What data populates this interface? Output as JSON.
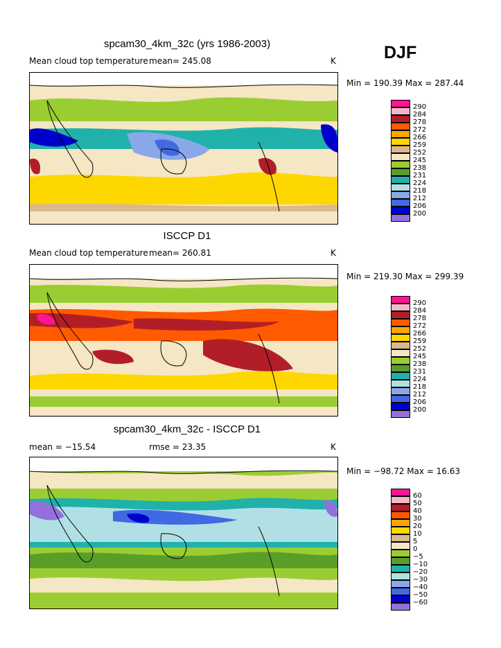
{
  "season": "DJF",
  "panels": [
    {
      "title": "spcam30_4km_32c (yrs 1986-2003)",
      "left_label": "Mean cloud top temperature",
      "mid_label": "mean=  245.08",
      "units": "K",
      "minmax": "Min = 190.39  Max = 287.44",
      "legend": {
        "labels": [
          "290",
          "284",
          "278",
          "272",
          "266",
          "259",
          "252",
          "245",
          "238",
          "231",
          "224",
          "218",
          "212",
          "206",
          "200"
        ],
        "colors": [
          "#ff1493",
          "#f7b6c6",
          "#b21e28",
          "#ff5a00",
          "#ffa500",
          "#ffd700",
          "#d9b98a",
          "#f5e6c4",
          "#9acd32",
          "#5a9e2a",
          "#20b2aa",
          "#b0e0e6",
          "#8aa8e8",
          "#4169e1",
          "#0000cd",
          "#9370db"
        ]
      }
    },
    {
      "title": "ISCCP D1",
      "left_label": "Mean cloud top temperature",
      "mid_label": "mean=  260.81",
      "units": "K",
      "minmax": "Min = 219.30  Max = 299.39",
      "legend": {
        "labels": [
          "290",
          "284",
          "278",
          "272",
          "266",
          "259",
          "252",
          "245",
          "238",
          "231",
          "224",
          "218",
          "212",
          "206",
          "200"
        ],
        "colors": [
          "#ff1493",
          "#f7b6c6",
          "#b21e28",
          "#ff5a00",
          "#ffa500",
          "#ffd700",
          "#d9b98a",
          "#f5e6c4",
          "#9acd32",
          "#5a9e2a",
          "#20b2aa",
          "#b0e0e6",
          "#8aa8e8",
          "#4169e1",
          "#0000cd",
          "#9370db"
        ]
      }
    },
    {
      "title": "spcam30_4km_32c - ISCCP D1",
      "left_label": "mean = −15.54",
      "mid_label": "rmse =  23.35",
      "units": "K",
      "minmax": "Min = −98.72  Max =  16.63",
      "legend": {
        "labels": [
          "60",
          "50",
          "40",
          "30",
          "20",
          "10",
          "5",
          "0",
          "−5",
          "−10",
          "−20",
          "−30",
          "−40",
          "−50",
          "−60"
        ],
        "colors": [
          "#ff1493",
          "#f7b6c6",
          "#b21e28",
          "#ff5a00",
          "#ffa500",
          "#ffd700",
          "#d9b98a",
          "#f5e6c4",
          "#9acd32",
          "#5a9e2a",
          "#20b2aa",
          "#b0e0e6",
          "#8aa8e8",
          "#4169e1",
          "#0000cd",
          "#9370db"
        ]
      }
    }
  ]
}
